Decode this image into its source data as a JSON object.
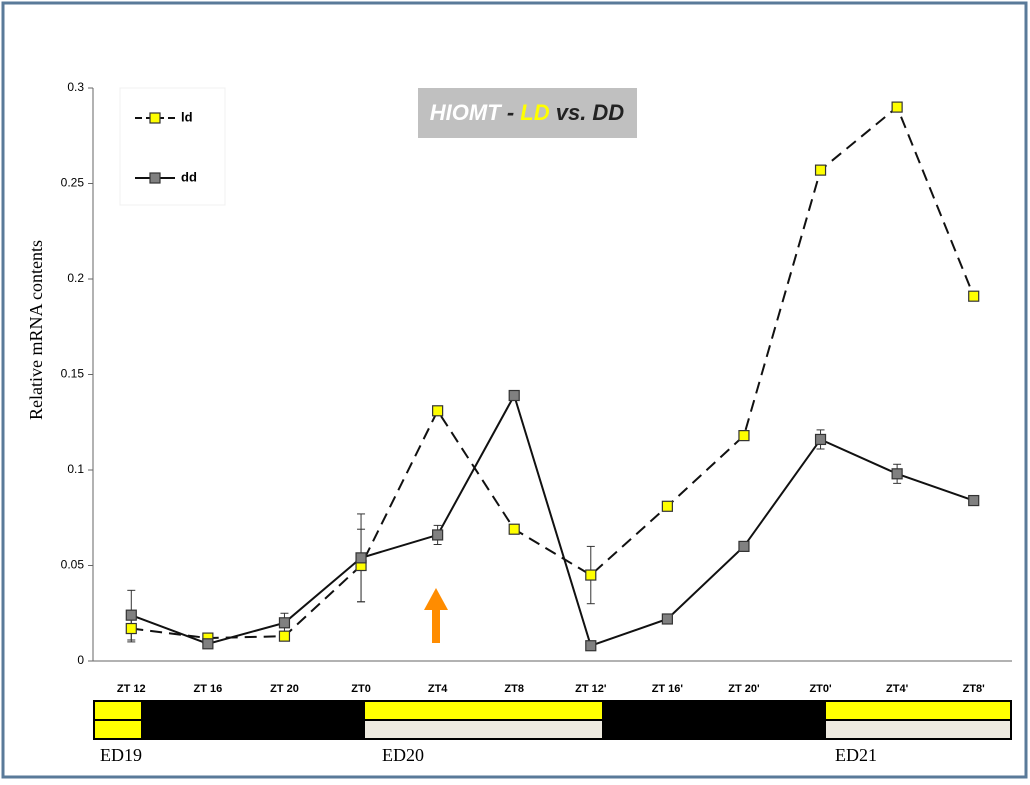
{
  "chart_data": {
    "type": "line",
    "title_parts": [
      {
        "text": "HIOMT",
        "color": "#ffffff"
      },
      {
        "text": "-",
        "color": "#222222"
      },
      {
        "text": "LD",
        "color": "#ffff00"
      },
      {
        "text": "vs. DD",
        "color": "#222222"
      }
    ],
    "y_label": "Relative mRNA contents",
    "categories": [
      "ZT 12",
      "ZT 16",
      "ZT 20",
      "ZT0",
      "ZT4",
      "ZT8",
      "ZT 12'",
      "ZT 16'",
      "ZT 20'",
      "ZT0'",
      "ZT4'",
      "ZT8'"
    ],
    "series": [
      {
        "name": "ld",
        "color": "#ffff00",
        "dashed": true,
        "values": [
          0.017,
          0.012,
          0.013,
          0.05,
          0.131,
          0.069,
          0.045,
          0.081,
          0.118,
          0.257,
          0.29,
          0.191
        ],
        "errors": [
          0.007,
          null,
          null,
          0.019,
          null,
          null,
          0.015,
          null,
          null,
          null,
          null,
          null
        ]
      },
      {
        "name": "dd",
        "color": "#808080",
        "dashed": false,
        "values": [
          0.024,
          0.009,
          0.02,
          0.054,
          0.066,
          0.139,
          0.008,
          0.022,
          0.06,
          0.116,
          0.098,
          0.084
        ],
        "errors": [
          0.013,
          null,
          0.005,
          0.023,
          0.005,
          null,
          null,
          null,
          null,
          0.005,
          0.005,
          null
        ]
      }
    ],
    "ylim": [
      0,
      0.3
    ],
    "yticks": [
      0,
      0.05,
      0.1,
      0.15,
      0.2,
      0.25,
      0.3
    ],
    "day_labels": [
      "ED19",
      "ED20",
      "ED21"
    ]
  }
}
